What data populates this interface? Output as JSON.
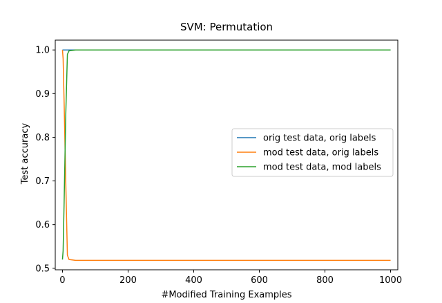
{
  "chart_data": {
    "type": "line",
    "title": "SVM: Permutation",
    "xlabel": "#Modified Training Examples",
    "ylabel": "Test accuracy",
    "xlim": [
      -22,
      1022
    ],
    "ylim": [
      0.4965,
      1.0225
    ],
    "xticks": [
      0,
      200,
      400,
      600,
      800,
      1000
    ],
    "xtick_labels": [
      "0",
      "200",
      "400",
      "600",
      "800",
      "1000"
    ],
    "yticks": [
      0.5,
      0.6,
      0.7,
      0.8,
      0.9,
      1.0
    ],
    "ytick_labels": [
      "0.5",
      "0.6",
      "0.7",
      "0.8",
      "0.9",
      "1.0"
    ],
    "grid": false,
    "legend_position": "center-right",
    "series": [
      {
        "name": "orig test data, orig labels",
        "color": "#1f77b4",
        "x": [
          0,
          10,
          20,
          30,
          40,
          50,
          60,
          100,
          200,
          400,
          600,
          800,
          1000
        ],
        "y": [
          1.0,
          1.0,
          1.0,
          1.0,
          1.0,
          1.0,
          1.0,
          1.0,
          1.0,
          1.0,
          1.0,
          1.0,
          1.0
        ]
      },
      {
        "name": "mod test data, orig labels",
        "color": "#ff7f0e",
        "x": [
          0,
          2,
          5,
          10,
          15,
          20,
          30,
          40,
          50,
          60,
          100,
          200,
          400,
          600,
          800,
          1000
        ],
        "y": [
          1.0,
          0.98,
          0.88,
          0.7,
          0.53,
          0.52,
          0.519,
          0.518,
          0.518,
          0.518,
          0.518,
          0.518,
          0.518,
          0.518,
          0.518,
          0.518
        ]
      },
      {
        "name": "mod test data, mod labels",
        "color": "#2ca02c",
        "x": [
          0,
          2,
          5,
          10,
          15,
          20,
          30,
          40,
          50,
          60,
          100,
          200,
          400,
          600,
          800,
          1000
        ],
        "y": [
          0.52,
          0.54,
          0.65,
          0.85,
          0.99,
          0.998,
          0.999,
          1.0,
          1.0,
          1.0,
          1.0,
          1.0,
          1.0,
          1.0,
          1.0,
          1.0
        ]
      }
    ]
  }
}
